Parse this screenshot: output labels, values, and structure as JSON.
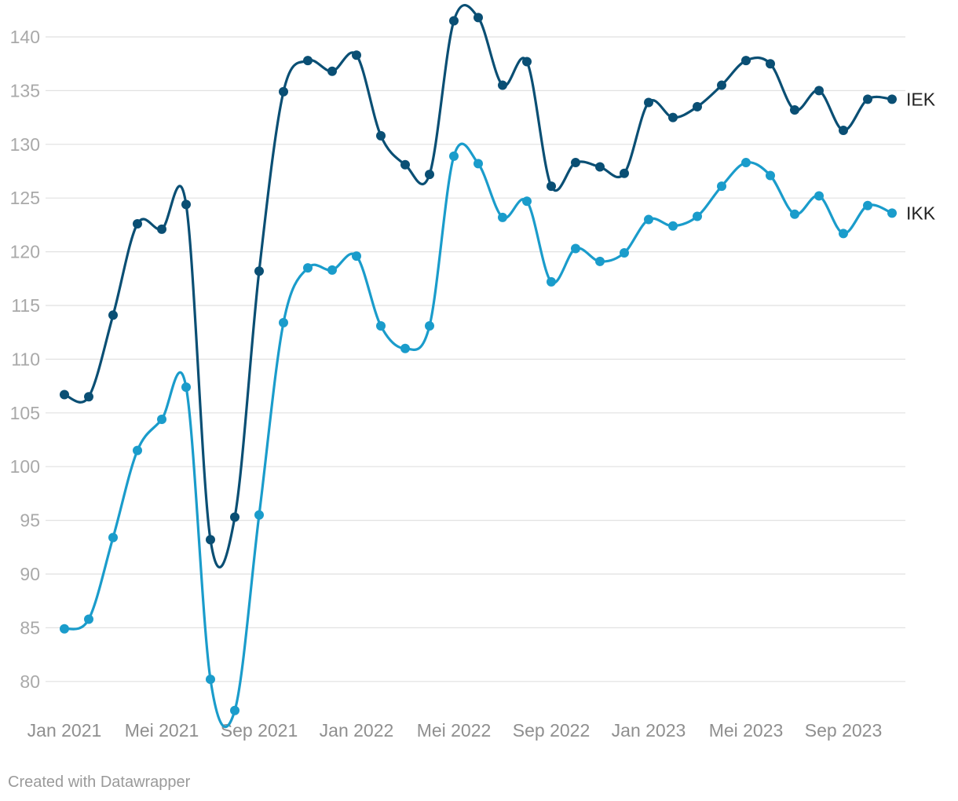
{
  "footer": {
    "credit": "Created with Datawrapper"
  },
  "chart_data": {
    "type": "line",
    "title": "",
    "xlabel": "",
    "ylabel": "",
    "ylim": [
      76.5,
      142.5
    ],
    "yticks": [
      80,
      85,
      90,
      95,
      100,
      105,
      110,
      115,
      120,
      125,
      130,
      135,
      140
    ],
    "x_tick_labels": [
      {
        "label": "Jan 2021",
        "index": 0
      },
      {
        "label": "Mei 2021",
        "index": 4
      },
      {
        "label": "Sep 2021",
        "index": 8
      },
      {
        "label": "Jan 2022",
        "index": 12
      },
      {
        "label": "Mei 2022",
        "index": 16
      },
      {
        "label": "Sep 2022",
        "index": 20
      },
      {
        "label": "Jan 2023",
        "index": 24
      },
      {
        "label": "Mei 2023",
        "index": 28
      },
      {
        "label": "Sep 2023",
        "index": 32
      }
    ],
    "x": [
      "Jan 2021",
      "Feb 2021",
      "Mar 2021",
      "Apr 2021",
      "Mei 2021",
      "Jun 2021",
      "Jul 2021",
      "Agu 2021",
      "Sep 2021",
      "Okt 2021",
      "Nov 2021",
      "Des 2021",
      "Jan 2022",
      "Feb 2022",
      "Mar 2022",
      "Apr 2022",
      "Mei 2022",
      "Jun 2022",
      "Jul 2022",
      "Agu 2022",
      "Sep 2022",
      "Okt 2022",
      "Nov 2022",
      "Des 2022",
      "Jan 2023",
      "Feb 2023",
      "Mar 2023",
      "Apr 2023",
      "Mei 2023",
      "Jun 2023",
      "Jul 2023",
      "Agu 2023",
      "Sep 2023",
      "Okt 2023",
      "Nov 2023"
    ],
    "series": [
      {
        "name": "IEK",
        "color": "#0a4f74",
        "values": [
          106.7,
          106.5,
          114.1,
          122.6,
          122.1,
          124.4,
          93.2,
          95.3,
          118.2,
          134.9,
          137.8,
          136.8,
          138.3,
          130.8,
          128.1,
          127.2,
          141.5,
          141.8,
          135.5,
          137.7,
          126.1,
          128.3,
          127.9,
          127.3,
          133.9,
          132.5,
          133.5,
          135.5,
          137.8,
          137.5,
          133.2,
          135.0,
          131.3,
          134.2,
          134.2
        ]
      },
      {
        "name": "IKK",
        "color": "#1a9ccb",
        "values": [
          84.9,
          85.8,
          93.4,
          101.5,
          104.4,
          107.4,
          80.2,
          77.3,
          95.5,
          113.4,
          118.5,
          118.3,
          119.6,
          113.1,
          111.0,
          113.1,
          128.9,
          128.2,
          123.2,
          124.7,
          117.2,
          120.3,
          119.1,
          119.9,
          123.0,
          122.4,
          123.3,
          126.1,
          128.3,
          127.1,
          123.5,
          125.2,
          121.7,
          124.3,
          123.6
        ]
      }
    ]
  }
}
